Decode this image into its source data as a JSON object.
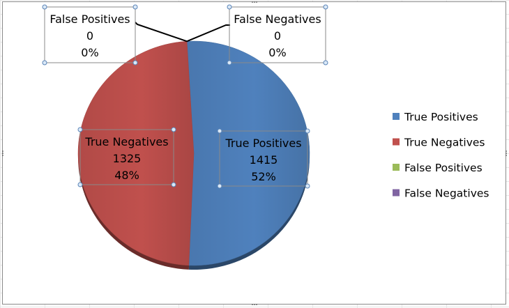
{
  "chart_data": {
    "type": "pie",
    "slices": [
      {
        "name": "True Positives",
        "value": 1415,
        "percent": "52%",
        "color": "#4f81bd"
      },
      {
        "name": "True Negatives",
        "value": 1325,
        "percent": "48%",
        "color": "#c0504d"
      },
      {
        "name": "False Positives",
        "value": 0,
        "percent": "0%",
        "color": "#9bbb59"
      },
      {
        "name": "False Negatives",
        "value": 0,
        "percent": "0%",
        "color": "#8064a2"
      }
    ],
    "legend": {
      "position": "right",
      "items": [
        "True Positives",
        "True Negatives",
        "False Positives",
        "False Negatives"
      ]
    }
  }
}
